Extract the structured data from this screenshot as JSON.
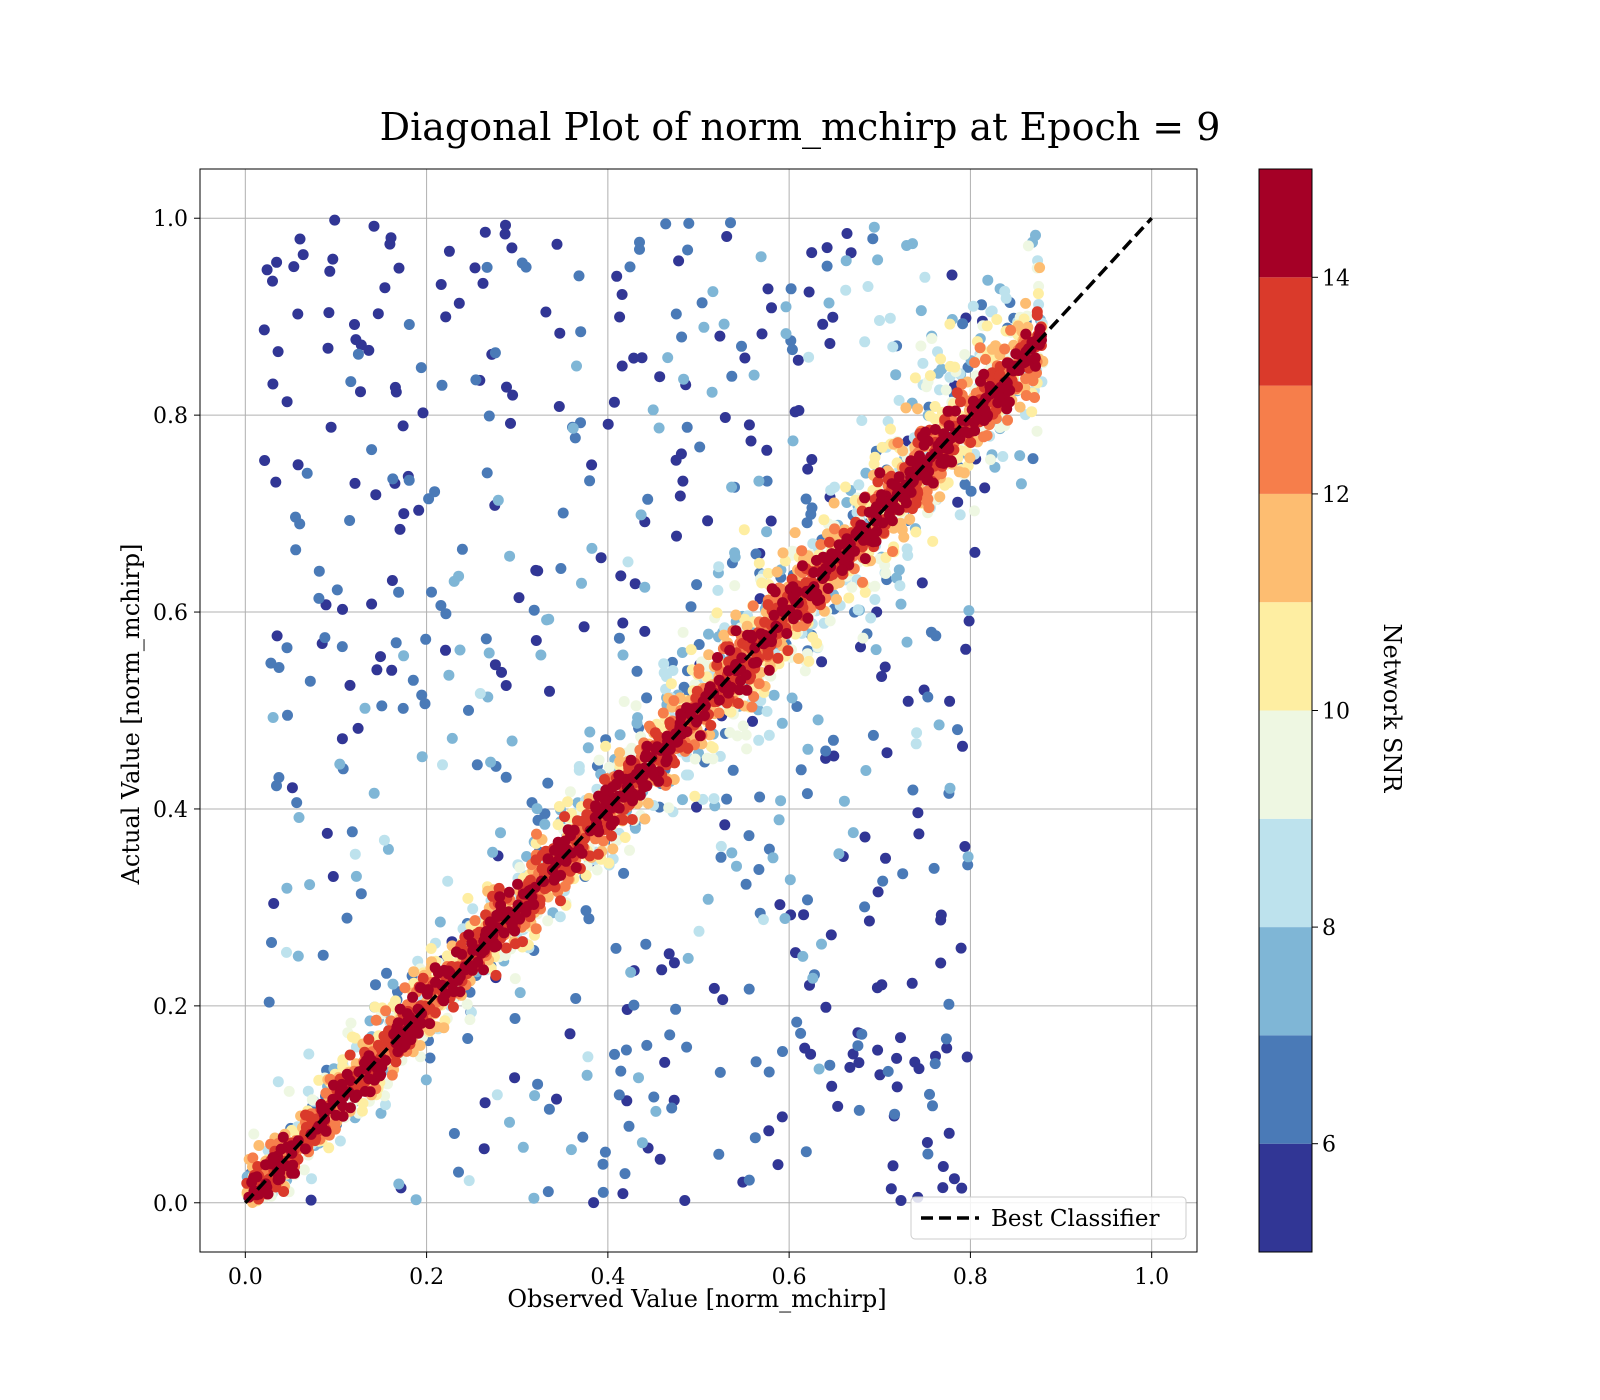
{
  "chart_data": {
    "type": "scatter",
    "title": "Diagonal Plot of norm_mchirp at Epoch = 9",
    "xlabel": "Observed Value [norm_mchirp]",
    "ylabel": "Actual Value [norm_mchirp]",
    "xlim": [
      -0.05,
      1.05
    ],
    "ylim": [
      -0.05,
      1.05
    ],
    "x_ticks": [
      0.0,
      0.2,
      0.4,
      0.6,
      0.8,
      1.0
    ],
    "y_ticks": [
      0.0,
      0.2,
      0.4,
      0.6,
      0.8,
      1.0
    ],
    "x_tick_labels": [
      "0.0",
      "0.2",
      "0.4",
      "0.6",
      "0.8",
      "1.0"
    ],
    "y_tick_labels": [
      "0.0",
      "0.2",
      "0.4",
      "0.6",
      "0.8",
      "1.0"
    ],
    "grid": true,
    "reference_line": {
      "name": "Best Classifier",
      "x": [
        0.0,
        1.0
      ],
      "y": [
        0.0,
        1.0
      ],
      "style": "dashed",
      "color": "#000000"
    },
    "legend": {
      "placement": "lower-right",
      "entries": [
        "Best Classifier"
      ]
    },
    "colorbar": {
      "label": "Network SNR",
      "range": [
        5,
        15
      ],
      "ticks": [
        6,
        8,
        10,
        12,
        14
      ],
      "tick_labels": [
        "6",
        "8",
        "10",
        "12",
        "14"
      ],
      "levels": [
        {
          "from": 5,
          "to": 6,
          "color": "#313695"
        },
        {
          "from": 6,
          "to": 7,
          "color": "#4a7ab7"
        },
        {
          "from": 7,
          "to": 8,
          "color": "#7fb6d6"
        },
        {
          "from": 8,
          "to": 9,
          "color": "#bde2ed"
        },
        {
          "from": 9,
          "to": 10,
          "color": "#eef7e2"
        },
        {
          "from": 10,
          "to": 11,
          "color": "#feeea2"
        },
        {
          "from": 11,
          "to": 12,
          "color": "#fdbd71"
        },
        {
          "from": 12,
          "to": 13,
          "color": "#f67e4b"
        },
        {
          "from": 13,
          "to": 14,
          "color": "#da3a2b"
        },
        {
          "from": 14,
          "to": 15,
          "color": "#a50026"
        }
      ]
    },
    "points": {
      "observed_range": [
        0.0,
        0.88
      ],
      "actual_range": [
        0.0,
        1.0
      ],
      "snr_range": [
        5,
        15
      ],
      "relationship": "high-SNR points lie tightly along the diagonal; low-SNR points scatter widely above and below it",
      "approx_count": 4000
    }
  }
}
